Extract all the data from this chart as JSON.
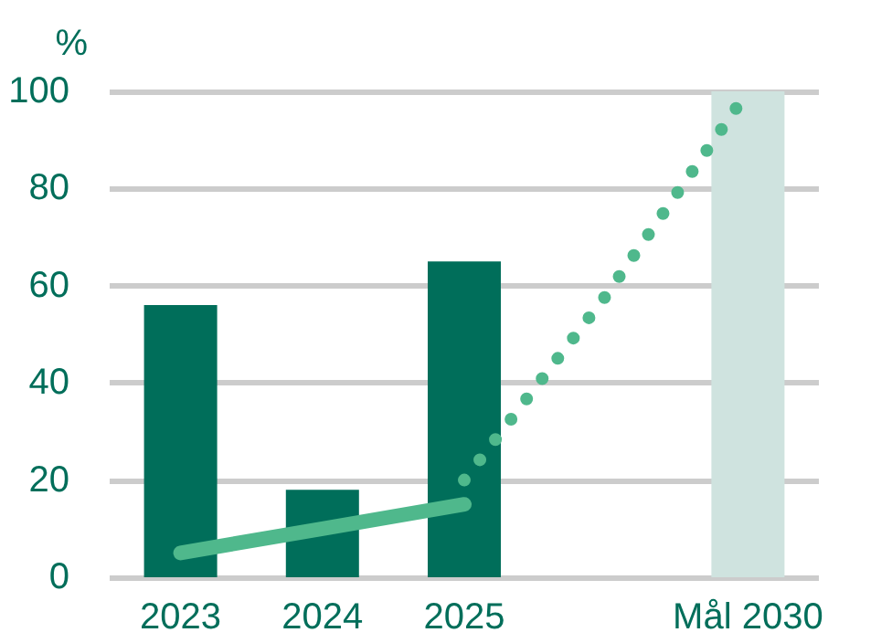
{
  "chart_data": {
    "type": "bar",
    "ylabel": "%",
    "categories": [
      "2023",
      "2024",
      "2025",
      null,
      "Mål 2030"
    ],
    "series": [
      {
        "colors": [
          "#006e5a",
          "#006e5a",
          "#006e5a",
          "#006e5a",
          "#cfe3df"
        ],
        "values": [
          56,
          18,
          65,
          null,
          100
        ]
      },
      {
        "type": "line",
        "color": "#4fb88c",
        "line_style": "solid",
        "values": [
          5,
          10,
          15,
          null,
          null
        ]
      },
      {
        "type": "line",
        "color": "#4fb88c",
        "line_style": "dotted",
        "values": [
          null,
          null,
          20,
          58,
          100
        ]
      }
    ],
    "ylim": [
      0,
      100
    ],
    "yticks": [
      0,
      20,
      40,
      60,
      80,
      100
    ],
    "grid": "y",
    "marker": "none"
  }
}
